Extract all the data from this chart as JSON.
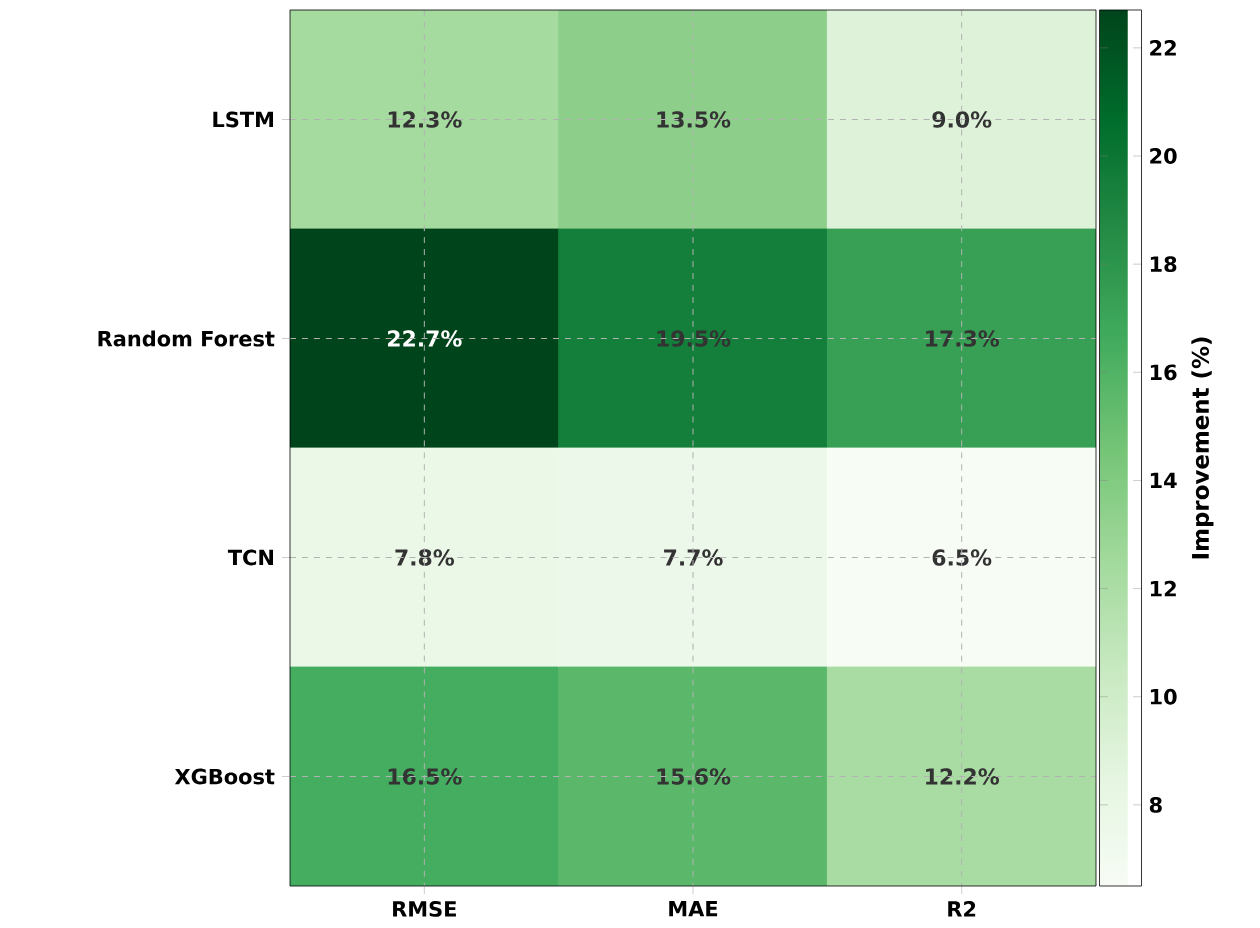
{
  "chart_data": {
    "type": "heatmap",
    "categories": [
      "RMSE",
      "MAE",
      "R2"
    ],
    "y_categories": [
      "LSTM",
      "Random Forest",
      "TCN",
      "XGBoost"
    ],
    "cells": [
      [
        12.3,
        13.5,
        9.0
      ],
      [
        22.7,
        19.5,
        17.3
      ],
      [
        7.8,
        7.7,
        6.5
      ],
      [
        16.5,
        15.6,
        12.2
      ]
    ],
    "cell_labels": [
      [
        "12.3%",
        "13.5%",
        "9.0%"
      ],
      [
        "22.7%",
        "19.5%",
        "17.3%"
      ],
      [
        "7.8%",
        "7.7%",
        "6.5%"
      ],
      [
        "16.5%",
        "15.6%",
        "12.2%"
      ]
    ],
    "clabel": "Improvement (%)",
    "clim": [
      6.5,
      22.7
    ],
    "cticks": [
      8,
      10,
      12,
      14,
      16,
      18,
      20,
      22
    ],
    "grid": true
  }
}
